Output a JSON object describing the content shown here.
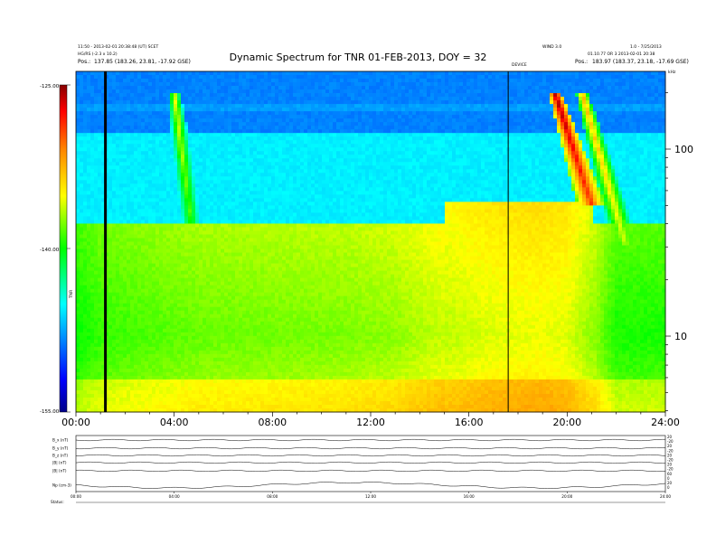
{
  "chart_data": [
    {
      "type": "heatmap",
      "title": "Dynamic Spectrum for TNR 01-FEB-2013, DOY = 32",
      "x_tick_labels": [
        "00:00",
        "04:00",
        "08:00",
        "12:00",
        "16:00",
        "20:00",
        "24:00"
      ],
      "xlim": [
        0,
        24
      ],
      "y_right_scale": "log",
      "y_right_tick_labels": [
        "10",
        "100"
      ],
      "y_right_unit": "kHz",
      "colorbar": {
        "tick_labels": [
          "-125.00",
          "-140.00",
          "-155.00"
        ],
        "range": [
          -155,
          -125
        ],
        "label": "TNR",
        "colors": [
          "#000088",
          "#0000ff",
          "#00ffff",
          "#00ff00",
          "#ffff00",
          "#ff8800",
          "#ff0000",
          "#880000"
        ]
      },
      "background_level_dB": [
        {
          "t": 0,
          "level": -141
        },
        {
          "t": 1,
          "level": -140
        },
        {
          "t": 3,
          "level": -139.5
        },
        {
          "t": 5,
          "level": -139
        },
        {
          "t": 8,
          "level": -138.8
        },
        {
          "t": 11,
          "level": -138.6
        },
        {
          "t": 13,
          "level": -138.2
        },
        {
          "t": 15,
          "level": -137.2
        },
        {
          "t": 17,
          "level": -136.5
        },
        {
          "t": 19,
          "level": -136.2
        },
        {
          "t": 20,
          "level": -136.5
        },
        {
          "t": 21,
          "level": -138
        },
        {
          "t": 22,
          "level": -140.5
        },
        {
          "t": 24,
          "level": -140.5
        }
      ],
      "data_gaps_hours": [
        1.2,
        17.6
      ],
      "bursts": [
        {
          "t_start": 4.0,
          "t_end": 4.7,
          "f_top_kHz": 200,
          "f_bottom_kHz": 40,
          "peak": -135
        },
        {
          "t_start": 19.5,
          "t_end": 21.0,
          "f_top_kHz": 200,
          "f_bottom_kHz": 50,
          "peak": -125
        },
        {
          "t_start": 20.6,
          "t_end": 22.4,
          "f_top_kHz": 200,
          "f_bottom_kHz": 30,
          "peak": -132
        }
      ]
    }
  ],
  "header": {
    "left_line1": "11:50 - 2013-02-01 20:38:48 (UT) SCET",
    "left_line2": "HG/RS (-2.3 x 10.2)",
    "left_line3_label": "Pos.:",
    "left_line3_value": "137.85 (183.26, 23.81, -17.92 GSE)",
    "right_line1": "WIND 3.0",
    "right_line1b": "1.0 - 7/25/2013",
    "right_line2": "01.10.77 OR 3 2013-02-01 20:38",
    "right_line3_label": "Pos.:",
    "right_line3_value": "183.97 (183.37, 23.18, -17.69 GSE)",
    "top_marker_label": "DEVICE",
    "khz_label": "kHz"
  },
  "bottom_panel": {
    "row_labels": [
      "B_x (nT)",
      "B_y (nT)",
      "B_z (nT)",
      "|B| (nT)",
      "|B| (nT)",
      "Np (cm-3)"
    ],
    "right_tick_labels": [
      "20",
      "-20",
      "20",
      "-20",
      "20",
      "-20",
      "20",
      "-20",
      "60",
      "0",
      "20",
      "0"
    ],
    "x_tick_labels": [
      "00:00",
      "04:00",
      "08:00",
      "12:00",
      "16:00",
      "20:00",
      "24:00"
    ],
    "footer_label": "Status:"
  }
}
